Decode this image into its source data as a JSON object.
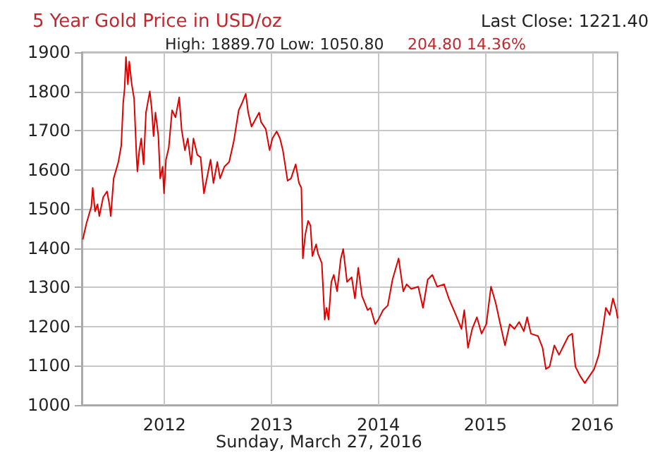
{
  "chart_data": {
    "type": "line",
    "title": "5 Year Gold Price in USD/oz",
    "xlabel": "Sunday, March 27, 2016",
    "annotations": [
      "Last Close: 1221.40",
      "High: 1889.70 Low: 1050.80",
      "204.80 14.36%"
    ],
    "xlim": [
      2011.227,
      2016.237
    ],
    "xticks": [
      2012,
      2013,
      2014,
      2015,
      2016
    ],
    "ylim": [
      1000,
      1900
    ],
    "yticks": [
      1000,
      1100,
      1200,
      1300,
      1400,
      1500,
      1600,
      1700,
      1800,
      1900
    ],
    "grid": true,
    "marker": "none",
    "line_style": "solid",
    "series": [
      {
        "color": "#e00000",
        "x": [
          2011.236,
          2011.271,
          2011.316,
          2011.329,
          2011.351,
          2011.374,
          2011.391,
          2011.427,
          2011.463,
          2011.485,
          2011.498,
          2011.525,
          2011.569,
          2011.596,
          2011.614,
          2011.627,
          2011.64,
          2011.658,
          2011.671,
          2011.694,
          2011.716,
          2011.738,
          2011.747,
          2011.765,
          2011.783,
          2011.805,
          2011.827,
          2011.863,
          2011.88,
          2011.898,
          2011.916,
          2011.943,
          2011.96,
          2011.983,
          2011.996,
          2012.014,
          2012.04,
          2012.071,
          2012.103,
          2012.138,
          2012.16,
          2012.191,
          2012.218,
          2012.249,
          2012.271,
          2012.307,
          2012.338,
          2012.369,
          2012.405,
          2012.431,
          2012.458,
          2012.494,
          2012.52,
          2012.56,
          2012.605,
          2012.649,
          2012.694,
          2012.725,
          2012.76,
          2012.783,
          2012.814,
          2012.849,
          2012.885,
          2012.903,
          2012.947,
          2012.983,
          2013.009,
          2013.049,
          2013.08,
          2013.107,
          2013.151,
          2013.183,
          2013.227,
          2013.258,
          2013.28,
          2013.294,
          2013.316,
          2013.343,
          2013.365,
          2013.383,
          2013.418,
          2013.436,
          2013.471,
          2013.498,
          2013.516,
          2013.534,
          2013.56,
          2013.583,
          2013.614,
          2013.649,
          2013.671,
          2013.707,
          2013.75,
          2013.781,
          2013.812,
          2013.847,
          2013.9,
          2013.926,
          2013.97,
          2014.0,
          2014.044,
          2014.088,
          2014.132,
          2014.189,
          2014.233,
          2014.264,
          2014.307,
          2014.373,
          2014.417,
          2014.461,
          2014.505,
          2014.549,
          2014.614,
          2014.658,
          2014.724,
          2014.777,
          2014.803,
          2014.838,
          2014.877,
          2014.921,
          2014.965,
          2015.009,
          2015.053,
          2015.097,
          2015.14,
          2015.184,
          2015.228,
          2015.272,
          2015.316,
          2015.36,
          2015.391,
          2015.426,
          2015.492,
          2015.535,
          2015.566,
          2015.601,
          2015.645,
          2015.689,
          2015.733,
          2015.777,
          2015.812,
          2015.842,
          2015.886,
          2015.93,
          2015.974,
          2016.018,
          2016.061,
          2016.105,
          2016.127,
          2016.163,
          2016.193,
          2016.224,
          2016.237
        ],
        "values": [
          1422,
          1464,
          1506,
          1554,
          1494,
          1512,
          1482,
          1530,
          1545,
          1512,
          1482,
          1578,
          1620,
          1662,
          1770,
          1806,
          1888,
          1818,
          1876,
          1818,
          1782,
          1638,
          1596,
          1650,
          1680,
          1614,
          1746,
          1800,
          1758,
          1686,
          1746,
          1686,
          1578,
          1608,
          1540,
          1626,
          1656,
          1752,
          1734,
          1785,
          1704,
          1650,
          1680,
          1614,
          1680,
          1638,
          1632,
          1540,
          1590,
          1626,
          1566,
          1620,
          1578,
          1608,
          1620,
          1674,
          1752,
          1770,
          1794,
          1746,
          1710,
          1728,
          1746,
          1722,
          1704,
          1650,
          1680,
          1698,
          1680,
          1650,
          1572,
          1578,
          1614,
          1566,
          1554,
          1374,
          1434,
          1470,
          1458,
          1380,
          1410,
          1386,
          1362,
          1218,
          1248,
          1218,
          1314,
          1332,
          1290,
          1374,
          1398,
          1314,
          1326,
          1272,
          1350,
          1278,
          1242,
          1248,
          1206,
          1218,
          1242,
          1254,
          1320,
          1374,
          1290,
          1308,
          1296,
          1302,
          1248,
          1320,
          1332,
          1302,
          1308,
          1272,
          1230,
          1194,
          1242,
          1146,
          1194,
          1224,
          1182,
          1206,
          1302,
          1260,
          1206,
          1152,
          1206,
          1194,
          1212,
          1188,
          1224,
          1182,
          1176,
          1146,
          1092,
          1098,
          1152,
          1128,
          1152,
          1176,
          1182,
          1098,
          1074,
          1056,
          1074,
          1092,
          1128,
          1206,
          1248,
          1230,
          1272,
          1242,
          1221
        ]
      }
    ]
  }
}
